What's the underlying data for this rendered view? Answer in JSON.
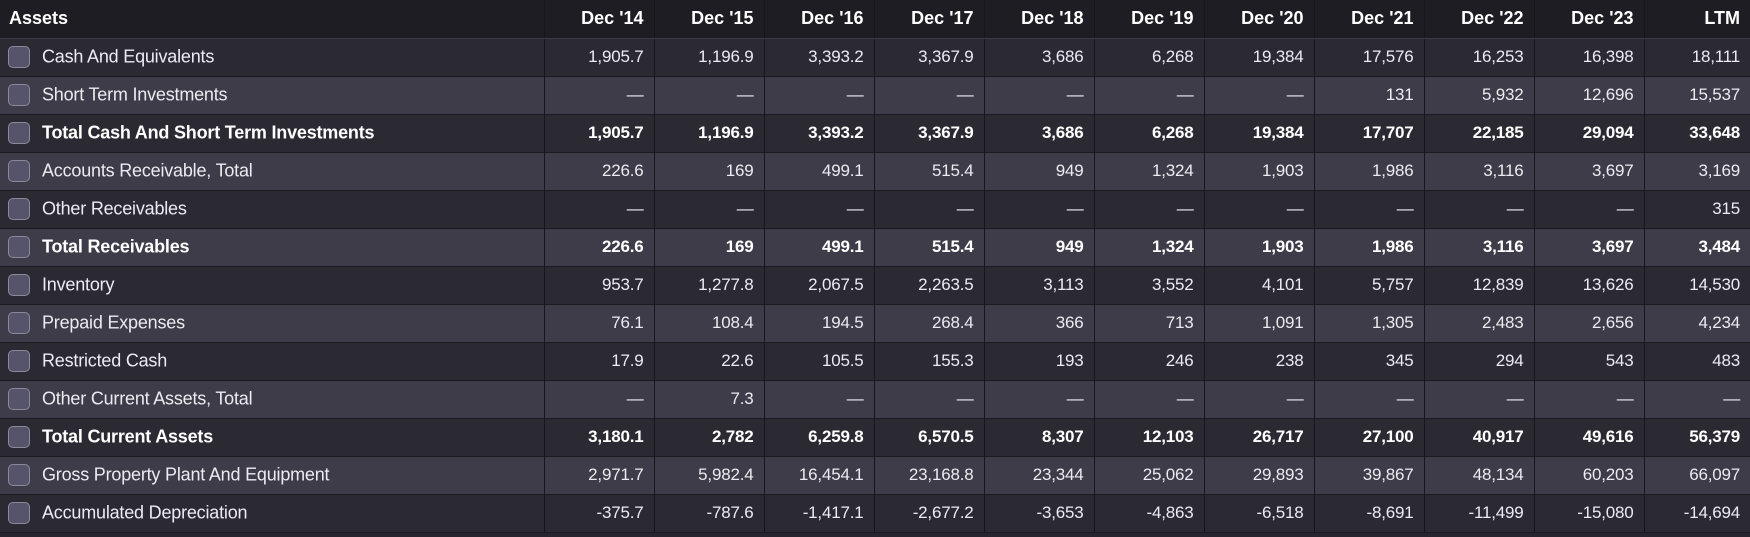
{
  "table": {
    "header": {
      "label": "Assets",
      "periods": [
        "Dec '14",
        "Dec '15",
        "Dec '16",
        "Dec '17",
        "Dec '18",
        "Dec '19",
        "Dec '20",
        "Dec '21",
        "Dec '22",
        "Dec '23",
        "LTM"
      ]
    },
    "rows": [
      {
        "label": "Cash And Equivalents",
        "total": false,
        "values": [
          "1,905.7",
          "1,196.9",
          "3,393.2",
          "3,367.9",
          "3,686",
          "6,268",
          "19,384",
          "17,576",
          "16,253",
          "16,398",
          "18,111"
        ]
      },
      {
        "label": "Short Term Investments",
        "total": false,
        "values": [
          "—",
          "—",
          "—",
          "—",
          "—",
          "—",
          "—",
          "131",
          "5,932",
          "12,696",
          "15,537"
        ]
      },
      {
        "label": "Total Cash And Short Term Investments",
        "total": true,
        "values": [
          "1,905.7",
          "1,196.9",
          "3,393.2",
          "3,367.9",
          "3,686",
          "6,268",
          "19,384",
          "17,707",
          "22,185",
          "29,094",
          "33,648"
        ]
      },
      {
        "label": "Accounts Receivable, Total",
        "total": false,
        "values": [
          "226.6",
          "169",
          "499.1",
          "515.4",
          "949",
          "1,324",
          "1,903",
          "1,986",
          "3,116",
          "3,697",
          "3,169"
        ]
      },
      {
        "label": "Other Receivables",
        "total": false,
        "values": [
          "—",
          "—",
          "—",
          "—",
          "—",
          "—",
          "—",
          "—",
          "—",
          "—",
          "315"
        ]
      },
      {
        "label": "Total Receivables",
        "total": true,
        "values": [
          "226.6",
          "169",
          "499.1",
          "515.4",
          "949",
          "1,324",
          "1,903",
          "1,986",
          "3,116",
          "3,697",
          "3,484"
        ]
      },
      {
        "label": "Inventory",
        "total": false,
        "values": [
          "953.7",
          "1,277.8",
          "2,067.5",
          "2,263.5",
          "3,113",
          "3,552",
          "4,101",
          "5,757",
          "12,839",
          "13,626",
          "14,530"
        ]
      },
      {
        "label": "Prepaid Expenses",
        "total": false,
        "values": [
          "76.1",
          "108.4",
          "194.5",
          "268.4",
          "366",
          "713",
          "1,091",
          "1,305",
          "2,483",
          "2,656",
          "4,234"
        ]
      },
      {
        "label": "Restricted Cash",
        "total": false,
        "values": [
          "17.9",
          "22.6",
          "105.5",
          "155.3",
          "193",
          "246",
          "238",
          "345",
          "294",
          "543",
          "483"
        ]
      },
      {
        "label": "Other Current Assets, Total",
        "total": false,
        "values": [
          "—",
          "7.3",
          "—",
          "—",
          "—",
          "—",
          "—",
          "—",
          "—",
          "—",
          "—"
        ]
      },
      {
        "label": "Total Current Assets",
        "total": true,
        "values": [
          "3,180.1",
          "2,782",
          "6,259.8",
          "6,570.5",
          "8,307",
          "12,103",
          "26,717",
          "27,100",
          "40,917",
          "49,616",
          "56,379"
        ]
      },
      {
        "label": "Gross Property Plant And Equipment",
        "total": false,
        "values": [
          "2,971.7",
          "5,982.4",
          "16,454.1",
          "23,168.8",
          "23,344",
          "25,062",
          "29,893",
          "39,867",
          "48,134",
          "60,203",
          "66,097"
        ]
      },
      {
        "label": "Accumulated Depreciation",
        "total": false,
        "values": [
          "-375.7",
          "-787.6",
          "-1,417.1",
          "-2,677.2",
          "-3,653",
          "-4,863",
          "-6,518",
          "-8,691",
          "-11,499",
          "-15,080",
          "-14,694"
        ]
      }
    ]
  }
}
